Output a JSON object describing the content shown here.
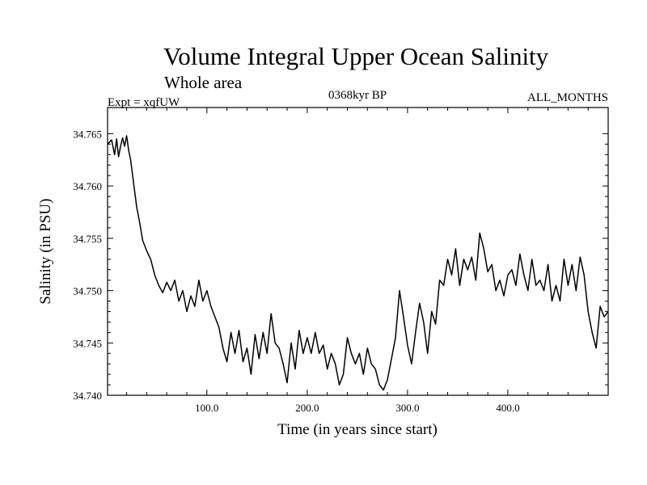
{
  "chart_data": {
    "type": "line",
    "title": "Volume Integral Upper Ocean Salinity",
    "subtitle": "Whole area",
    "experiment": "Expt = xqfUW",
    "period": "0368kyr BP",
    "months": "ALL_MONTHS",
    "xlabel": "Time (in years since start)",
    "ylabel": "Salinity (in PSU)",
    "xlim": [
      1,
      500
    ],
    "ylim": [
      34.74,
      34.7675
    ],
    "x_ticks": [
      100,
      200,
      300,
      400
    ],
    "x_tick_labels": [
      "100.0",
      "200.0",
      "300.0",
      "400.0"
    ],
    "y_ticks": [
      34.74,
      34.745,
      34.75,
      34.755,
      34.76,
      34.765
    ],
    "y_tick_labels": [
      "34.740",
      "34.745",
      "34.750",
      "34.755",
      "34.760",
      "34.765"
    ],
    "series": [
      {
        "name": "Salinity",
        "x": [
          1,
          5,
          8,
          10,
          12,
          14,
          16,
          18,
          20,
          22,
          24,
          26,
          28,
          30,
          33,
          36,
          40,
          44,
          48,
          52,
          56,
          60,
          64,
          68,
          72,
          76,
          80,
          84,
          88,
          92,
          96,
          100,
          104,
          108,
          112,
          116,
          120,
          124,
          128,
          132,
          136,
          140,
          144,
          148,
          152,
          156,
          160,
          164,
          168,
          172,
          176,
          180,
          184,
          188,
          192,
          196,
          200,
          204,
          208,
          212,
          216,
          220,
          224,
          228,
          232,
          236,
          240,
          244,
          248,
          252,
          256,
          260,
          264,
          268,
          272,
          276,
          280,
          284,
          288,
          292,
          296,
          300,
          304,
          308,
          312,
          316,
          320,
          324,
          328,
          332,
          336,
          340,
          344,
          348,
          352,
          356,
          360,
          364,
          368,
          372,
          376,
          380,
          384,
          388,
          392,
          396,
          400,
          404,
          408,
          412,
          416,
          420,
          424,
          428,
          432,
          436,
          440,
          444,
          448,
          452,
          456,
          460,
          464,
          468,
          472,
          476,
          480,
          484,
          488,
          492,
          496,
          500
        ],
        "values": [
          34.764,
          34.7644,
          34.763,
          34.7645,
          34.7628,
          34.7638,
          34.7646,
          34.7638,
          34.7648,
          34.7634,
          34.7625,
          34.761,
          34.7595,
          34.758,
          34.7565,
          34.7548,
          34.7538,
          34.753,
          34.7515,
          34.7505,
          34.7498,
          34.7508,
          34.75,
          34.751,
          34.749,
          34.75,
          34.748,
          34.7495,
          34.7485,
          34.751,
          34.749,
          34.75,
          34.7485,
          34.7475,
          34.7465,
          34.7445,
          34.7432,
          34.746,
          34.744,
          34.7462,
          34.7432,
          34.7445,
          34.742,
          34.7458,
          34.7435,
          34.746,
          34.744,
          34.7478,
          34.745,
          34.7445,
          34.743,
          34.7412,
          34.745,
          34.7425,
          34.7462,
          34.744,
          34.7455,
          34.744,
          34.746,
          34.744,
          34.7448,
          34.7425,
          34.744,
          34.743,
          34.741,
          34.742,
          34.7455,
          34.744,
          34.743,
          34.744,
          34.742,
          34.7445,
          34.743,
          34.7425,
          34.741,
          34.7405,
          34.7415,
          34.7435,
          34.7455,
          34.75,
          34.7475,
          34.7448,
          34.743,
          34.746,
          34.7488,
          34.747,
          34.744,
          34.748,
          34.7468,
          34.751,
          34.7505,
          34.753,
          34.7515,
          34.754,
          34.7505,
          34.753,
          34.752,
          34.7532,
          34.751,
          34.7555,
          34.754,
          34.7518,
          34.7525,
          34.75,
          34.751,
          34.7495,
          34.7515,
          34.752,
          34.7505,
          34.7535,
          34.7515,
          34.75,
          34.753,
          34.7505,
          34.751,
          34.75,
          34.7525,
          34.749,
          34.7505,
          34.749,
          34.753,
          34.7505,
          34.7525,
          34.75,
          34.7532,
          34.7515,
          34.748,
          34.746,
          34.7445,
          34.7485,
          34.7475,
          34.748
        ]
      }
    ]
  }
}
